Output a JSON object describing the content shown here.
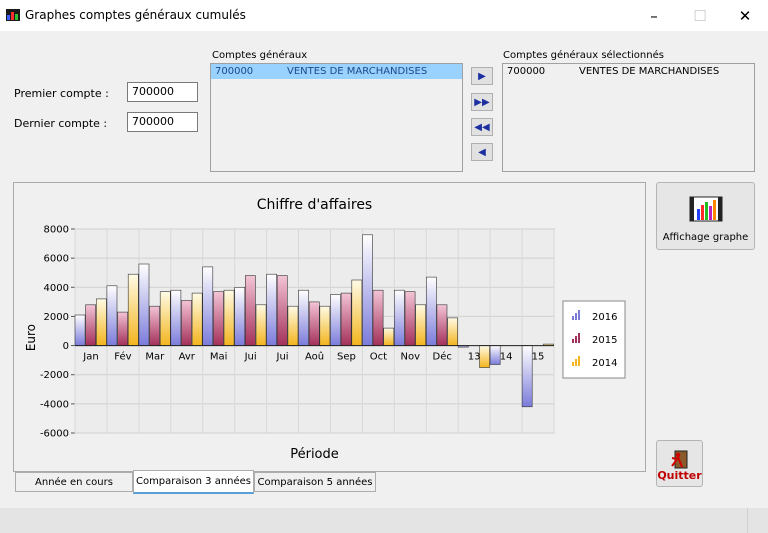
{
  "window": {
    "title": "Graphes comptes généraux cumulés"
  },
  "form": {
    "premier_label": "Premier compte :",
    "premier_value": "700000",
    "dernier_label": "Dernier compte :",
    "dernier_value": "700000"
  },
  "accounts": {
    "label": "Comptes généraux",
    "items": [
      {
        "code": "700000",
        "name": "VENTES DE MARCHANDISES"
      }
    ]
  },
  "selected": {
    "label": "Comptes généraux sélectionnés",
    "items": [
      {
        "code": "700000",
        "name": "VENTES DE MARCHANDISES"
      }
    ]
  },
  "buttons": {
    "show_graph": "Affichage graphe",
    "quit": "Quitter"
  },
  "tabs": [
    "Année en cours",
    "Comparaison 3 années",
    "Comparaison 5 années"
  ],
  "active_tab": 1,
  "colors": {
    "series_2016": "#7b7bdb",
    "series_2015": "#a3305a",
    "series_2014": "#f3b41d",
    "selection": "#99d1ff"
  },
  "chart_data": {
    "type": "bar",
    "title": "Chiffre d'affaires",
    "xlabel": "Période",
    "ylabel": "Euro",
    "ylim": [
      -6000,
      8000
    ],
    "yticks": [
      8000,
      6000,
      4000,
      2000,
      0,
      -2000,
      -4000,
      -6000
    ],
    "categories": [
      "Jan",
      "Fév",
      "Mar",
      "Avr",
      "Mai",
      "Jui",
      "Jui",
      "Aoû",
      "Sep",
      "Oct",
      "Nov",
      "Déc",
      "13",
      "14",
      "15"
    ],
    "legend_position": "right",
    "series": [
      {
        "name": "2016",
        "values": [
          2100,
          4100,
          5600,
          3800,
          5400,
          4000,
          4900,
          3800,
          3500,
          7600,
          3800,
          4700,
          -100,
          -1300,
          -4200
        ]
      },
      {
        "name": "2015",
        "values": [
          2800,
          2300,
          2700,
          3100,
          3700,
          4800,
          4800,
          3000,
          3600,
          3800,
          3700,
          2800,
          0,
          0,
          0
        ]
      },
      {
        "name": "2014",
        "values": [
          3200,
          4900,
          3700,
          3600,
          3800,
          2800,
          2700,
          2700,
          4500,
          1200,
          2800,
          1900,
          -1500,
          0,
          100
        ]
      }
    ]
  }
}
